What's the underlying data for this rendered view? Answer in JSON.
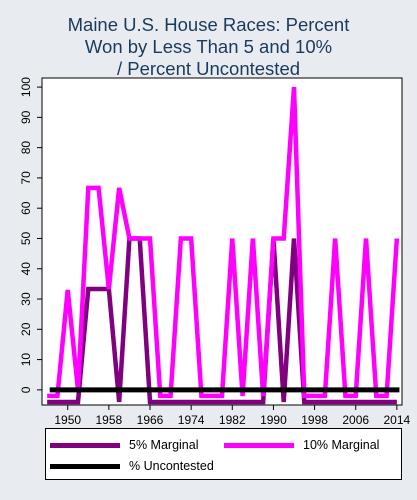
{
  "chart_data": {
    "type": "line",
    "title_lines": [
      "Maine U.S. House Races: Percent",
      "Won by Less Than 5 and 10%",
      "/ Percent Uncontested"
    ],
    "x": [
      1946,
      1948,
      1950,
      1952,
      1954,
      1956,
      1958,
      1960,
      1962,
      1964,
      1966,
      1968,
      1970,
      1972,
      1974,
      1976,
      1978,
      1980,
      1982,
      1984,
      1986,
      1988,
      1990,
      1992,
      1994,
      1996,
      1998,
      2000,
      2002,
      2004,
      2006,
      2008,
      2010,
      2012,
      2014
    ],
    "x_ticks": [
      1950,
      1958,
      1966,
      1974,
      1982,
      1990,
      1998,
      2006,
      2014
    ],
    "y_ticks": [
      0,
      10,
      20,
      30,
      40,
      50,
      60,
      70,
      80,
      90,
      100
    ],
    "ylim": [
      -5,
      103
    ],
    "xlim": [
      1945,
      2015
    ],
    "series": [
      {
        "name": "5% Marginal",
        "color": "#800080",
        "width": 4.5,
        "values": [
          -4,
          -4,
          -4,
          -4,
          33.3,
          33.3,
          33.3,
          -4,
          50,
          50,
          -4,
          -4,
          -4,
          -4,
          -4,
          -4,
          -4,
          -4,
          -4,
          -4,
          -4,
          -4,
          50,
          -4,
          50,
          -4,
          -4,
          -4,
          -4,
          -4,
          -4,
          -4,
          -4,
          -4,
          -4
        ]
      },
      {
        "name": "10% Marginal",
        "color": "#ff00ff",
        "width": 4.5,
        "values": [
          -2,
          -2,
          33,
          0,
          66.7,
          66.7,
          33.3,
          66.7,
          50,
          50,
          50,
          -2,
          -2,
          50,
          50,
          -2,
          -2,
          -2,
          50,
          -2,
          50,
          -2,
          50,
          50,
          100,
          -2,
          -2,
          -2,
          50,
          -2,
          -2,
          50,
          -2,
          -2,
          50
        ]
      },
      {
        "name": "% Uncontested",
        "color": "#000000",
        "width": 5,
        "values": [
          0,
          0,
          0,
          0,
          0,
          0,
          0,
          0,
          0,
          0,
          0,
          0,
          0,
          0,
          0,
          0,
          0,
          0,
          0,
          0,
          0,
          0,
          0,
          0,
          0,
          0,
          0,
          0,
          0,
          0,
          0,
          0,
          0,
          0,
          0
        ]
      }
    ],
    "legend_position": "bottom",
    "grid": false
  }
}
